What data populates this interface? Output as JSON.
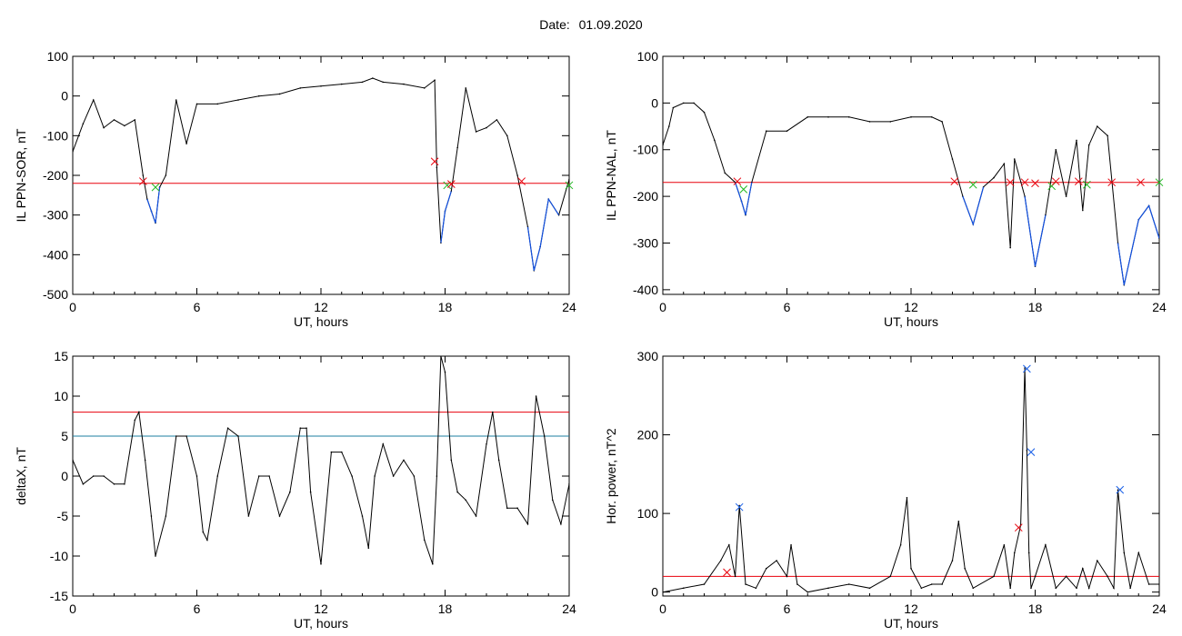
{
  "header": {
    "date_label": "Date:",
    "date_value": "01.09.2020"
  },
  "colors": {
    "trace": "#000000",
    "threshold_red": "#e8000b",
    "threshold_blue": "#1e7fa0",
    "blue_segment": "#1150e0",
    "marker_red": "#e8000b",
    "marker_green": "#22b822",
    "marker_blue": "#1a60e8"
  },
  "chart_data": [
    {
      "type": "line",
      "ylabel": "IL PPN-SOR, nT",
      "xlabel": "UT, hours",
      "xlim": [
        0,
        24
      ],
      "ylim": [
        -500,
        100
      ],
      "xticks": [
        "0",
        "6",
        "12",
        "18",
        "24"
      ],
      "yticks": [
        "100",
        "0",
        "-100",
        "-200",
        "-300",
        "-400",
        "-500"
      ],
      "threshold": -220,
      "x": [
        0,
        0.5,
        1.0,
        1.5,
        2.0,
        2.5,
        3.0,
        3.4,
        3.6,
        3.8,
        4.0,
        4.2,
        4.5,
        5.0,
        5.5,
        6.0,
        7.0,
        8.0,
        9.0,
        10.0,
        11.0,
        12.0,
        13.0,
        14.0,
        14.5,
        15.0,
        16.0,
        17.0,
        17.5,
        17.6,
        17.8,
        18.0,
        18.3,
        18.6,
        19.0,
        19.5,
        20.0,
        20.5,
        21.0,
        21.5,
        22.0,
        22.3,
        22.6,
        23.0,
        23.5,
        24.0
      ],
      "y": [
        -140,
        -70,
        -10,
        -80,
        -60,
        -75,
        -60,
        -200,
        -260,
        -290,
        -320,
        -230,
        -200,
        -10,
        -120,
        -20,
        -20,
        -10,
        0,
        5,
        20,
        25,
        30,
        35,
        45,
        35,
        30,
        20,
        40,
        -180,
        -370,
        -290,
        -240,
        -130,
        20,
        -90,
        -80,
        -60,
        -100,
        -200,
        -330,
        -440,
        -380,
        -260,
        -300,
        -210
      ],
      "markers": [
        {
          "x": 3.4,
          "y": -215,
          "color": "red"
        },
        {
          "x": 4.0,
          "y": -230,
          "color": "green"
        },
        {
          "x": 17.5,
          "y": -165,
          "color": "red"
        },
        {
          "x": 18.1,
          "y": -225,
          "color": "green"
        },
        {
          "x": 18.3,
          "y": -222,
          "color": "red"
        },
        {
          "x": 21.7,
          "y": -215,
          "color": "red"
        },
        {
          "x": 24.0,
          "y": -225,
          "color": "green"
        }
      ]
    },
    {
      "type": "line",
      "ylabel": "IL PPN-NAL, nT",
      "xlabel": "UT, hours",
      "xlim": [
        0,
        24
      ],
      "ylim": [
        -410,
        100
      ],
      "xticks": [
        "0",
        "6",
        "12",
        "18",
        "24"
      ],
      "yticks": [
        "100",
        "0",
        "-100",
        "-200",
        "-300",
        "-400"
      ],
      "threshold": -170,
      "x": [
        0,
        0.3,
        0.5,
        1.0,
        1.5,
        2.0,
        2.5,
        3.0,
        3.5,
        3.8,
        4.0,
        4.3,
        5.0,
        6.0,
        7.0,
        8.0,
        9.0,
        10.0,
        11.0,
        12.0,
        13.0,
        13.5,
        14.0,
        14.5,
        15.0,
        15.5,
        16.0,
        16.5,
        16.8,
        17.0,
        17.5,
        18.0,
        18.5,
        19.0,
        19.5,
        20.0,
        20.3,
        20.6,
        21.0,
        21.5,
        22.0,
        22.3,
        23.0,
        23.5,
        24.0
      ],
      "y": [
        -90,
        -50,
        -10,
        0,
        0,
        -20,
        -80,
        -150,
        -170,
        -210,
        -240,
        -170,
        -60,
        -60,
        -30,
        -30,
        -30,
        -40,
        -40,
        -30,
        -30,
        -40,
        -120,
        -200,
        -260,
        -180,
        -160,
        -130,
        -310,
        -120,
        -200,
        -350,
        -240,
        -100,
        -200,
        -80,
        -230,
        -90,
        -50,
        -70,
        -300,
        -390,
        -250,
        -220,
        -290
      ],
      "markers": [
        {
          "x": 3.6,
          "y": -168,
          "color": "red"
        },
        {
          "x": 3.9,
          "y": -185,
          "color": "green"
        },
        {
          "x": 14.1,
          "y": -168,
          "color": "red"
        },
        {
          "x": 15.0,
          "y": -175,
          "color": "green"
        },
        {
          "x": 16.8,
          "y": -170,
          "color": "red"
        },
        {
          "x": 17.5,
          "y": -170,
          "color": "red"
        },
        {
          "x": 18.0,
          "y": -172,
          "color": "red"
        },
        {
          "x": 18.8,
          "y": -178,
          "color": "green"
        },
        {
          "x": 19.0,
          "y": -168,
          "color": "red"
        },
        {
          "x": 20.1,
          "y": -168,
          "color": "red"
        },
        {
          "x": 20.5,
          "y": -175,
          "color": "green"
        },
        {
          "x": 21.7,
          "y": -170,
          "color": "red"
        },
        {
          "x": 23.1,
          "y": -170,
          "color": "red"
        },
        {
          "x": 24.0,
          "y": -170,
          "color": "green"
        }
      ]
    },
    {
      "type": "line",
      "ylabel": "deltaX, nT",
      "xlabel": "UT, hours",
      "xlim": [
        0,
        24
      ],
      "ylim": [
        -15,
        15
      ],
      "xticks": [
        "0",
        "6",
        "12",
        "18",
        "24"
      ],
      "yticks": [
        "15",
        "10",
        "5",
        "0",
        "-5",
        "-10",
        "-15"
      ],
      "threshold_red": 8,
      "threshold_blue": 5,
      "x": [
        0,
        0.5,
        1.0,
        1.5,
        2.0,
        2.5,
        3.0,
        3.2,
        3.5,
        3.8,
        4.0,
        4.5,
        5.0,
        5.5,
        6.0,
        6.3,
        6.5,
        7.0,
        7.5,
        8.0,
        8.5,
        9.0,
        9.5,
        10.0,
        10.5,
        11.0,
        11.3,
        11.5,
        12.0,
        12.5,
        13.0,
        13.5,
        14.0,
        14.3,
        14.6,
        15.0,
        15.5,
        16.0,
        16.5,
        17.0,
        17.4,
        17.6,
        17.8,
        18.0,
        18.3,
        18.6,
        19.0,
        19.5,
        20.0,
        20.3,
        20.6,
        21.0,
        21.5,
        22.0,
        22.4,
        22.8,
        23.2,
        23.6,
        24.0
      ],
      "y": [
        2,
        -1,
        0,
        0,
        -1,
        -1,
        7,
        8,
        2,
        -5,
        -10,
        -5,
        5,
        5,
        0,
        -7,
        -8,
        0,
        6,
        5,
        -5,
        0,
        0,
        -5,
        -2,
        6,
        6,
        -2,
        -11,
        3,
        3,
        0,
        -5,
        -9,
        0,
        4,
        0,
        2,
        0,
        -8,
        -11,
        0,
        15,
        13,
        2,
        -2,
        -3,
        -5,
        4,
        8,
        2,
        -4,
        -4,
        -6,
        10,
        5,
        -3,
        -6,
        -1
      ],
      "markers": []
    },
    {
      "type": "line",
      "ylabel": "Hor. power, nT^2",
      "xlabel": "UT, hours",
      "xlim": [
        0,
        24
      ],
      "ylim": [
        -5,
        300
      ],
      "xticks": [
        "0",
        "6",
        "12",
        "18",
        "24"
      ],
      "yticks": [
        "300",
        "200",
        "100",
        "0"
      ],
      "threshold": 20,
      "x": [
        0,
        1.0,
        2.0,
        2.8,
        3.2,
        3.5,
        3.7,
        4.0,
        4.5,
        5.0,
        5.5,
        6.0,
        6.2,
        6.5,
        7.0,
        8.0,
        9.0,
        10.0,
        11.0,
        11.5,
        11.8,
        12.0,
        12.5,
        13.0,
        13.5,
        14.0,
        14.3,
        14.6,
        15.0,
        16.0,
        16.5,
        16.8,
        17.0,
        17.3,
        17.5,
        17.6,
        17.7,
        17.8,
        18.0,
        18.5,
        19.0,
        19.5,
        20.0,
        20.3,
        20.6,
        21.0,
        21.5,
        21.8,
        22.0,
        22.3,
        22.6,
        23.0,
        23.5,
        24.0
      ],
      "y": [
        0,
        5,
        10,
        40,
        60,
        20,
        110,
        10,
        5,
        30,
        40,
        20,
        60,
        10,
        0,
        5,
        10,
        5,
        20,
        60,
        120,
        30,
        5,
        10,
        10,
        40,
        90,
        30,
        5,
        20,
        60,
        5,
        50,
        85,
        285,
        180,
        50,
        5,
        20,
        60,
        5,
        20,
        5,
        30,
        5,
        40,
        20,
        5,
        130,
        50,
        5,
        50,
        10,
        10
      ],
      "markers": [
        {
          "x": 3.1,
          "y": 25,
          "color": "red"
        },
        {
          "x": 3.7,
          "y": 108,
          "color": "blue"
        },
        {
          "x": 17.2,
          "y": 82,
          "color": "red"
        },
        {
          "x": 17.6,
          "y": 284,
          "color": "blue"
        },
        {
          "x": 17.8,
          "y": 178,
          "color": "blue"
        },
        {
          "x": 22.1,
          "y": 130,
          "color": "blue"
        }
      ]
    }
  ]
}
